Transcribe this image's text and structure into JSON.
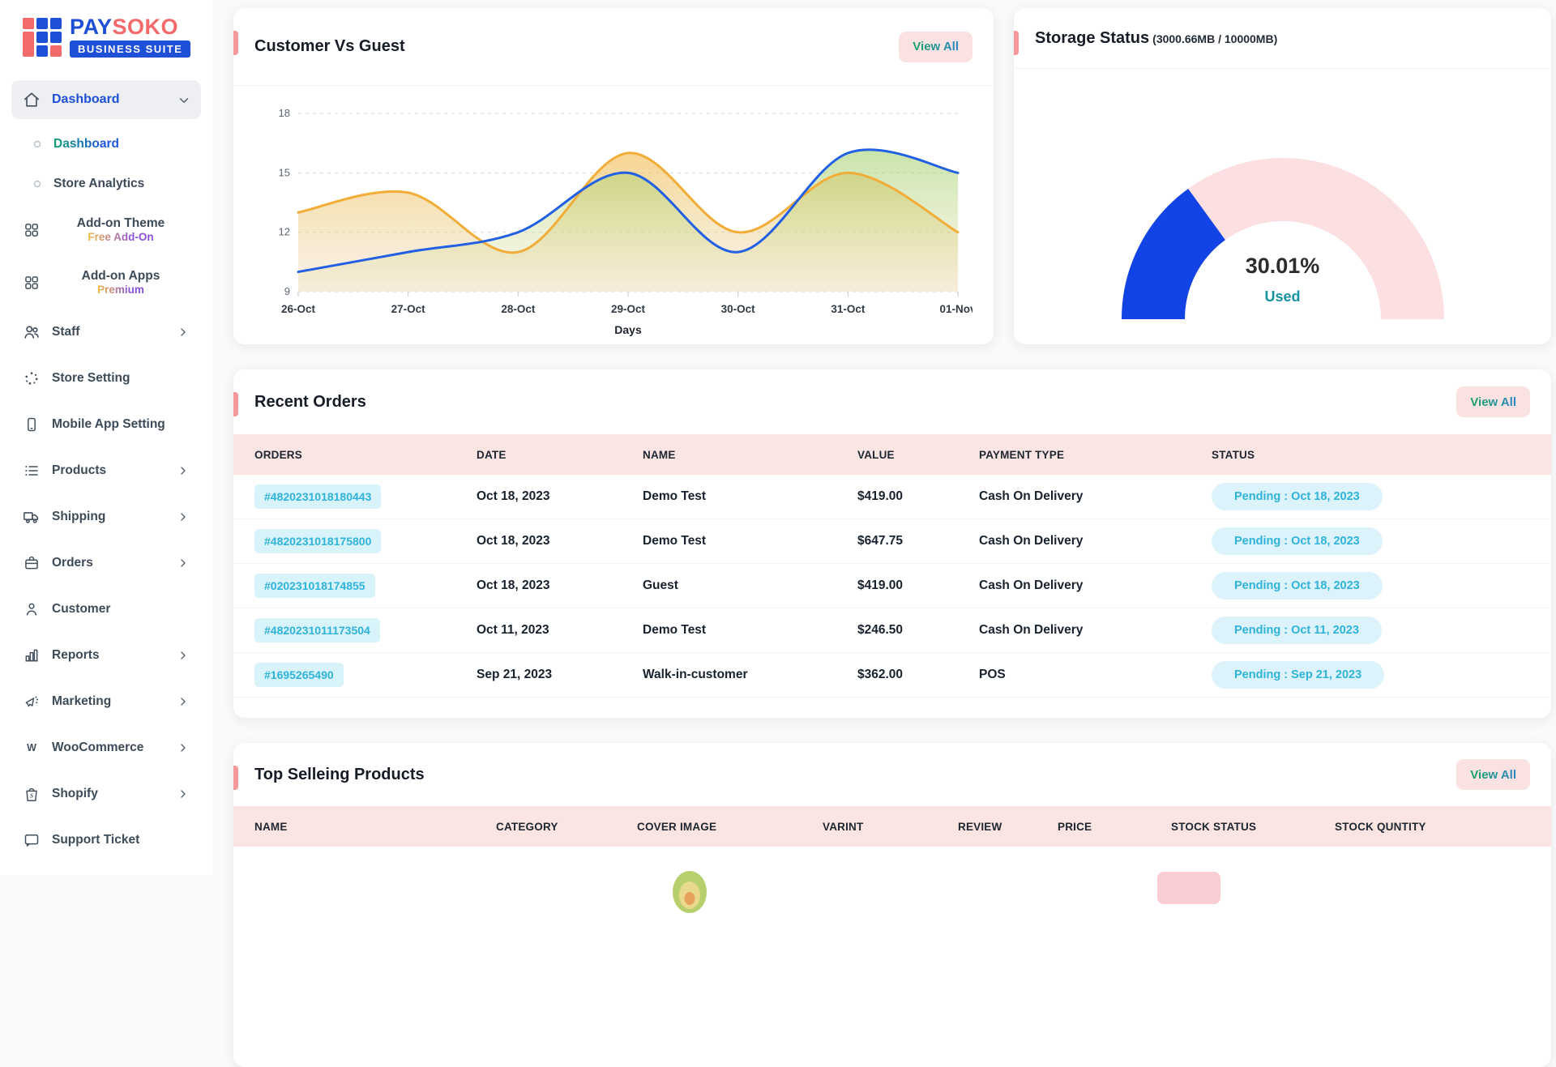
{
  "logo": {
    "brand_primary": "PAY",
    "brand_secondary": "SOKO",
    "tagline": "BUSINESS SUITE"
  },
  "sidebar": {
    "items": [
      {
        "label": "Dashboard",
        "icon": "home-icon",
        "chevron": "down",
        "style": "parent-active"
      },
      {
        "label": "Dashboard",
        "icon": "circle-icon",
        "style": "sub-active"
      },
      {
        "label": "Store Analytics",
        "icon": "circle-icon",
        "style": "sub"
      },
      {
        "label": "Add-on Theme",
        "sub_label": "Free Add-On",
        "icon": "grid-icon",
        "style": "twoline"
      },
      {
        "label": "Add-on Apps",
        "sub_label": "Premium",
        "icon": "grid-icon",
        "style": "twoline"
      },
      {
        "label": "Staff",
        "icon": "users-icon",
        "chevron": "right"
      },
      {
        "label": "Store Setting",
        "icon": "dots-circle-icon"
      },
      {
        "label": "Mobile App Setting",
        "icon": "smartphone-icon"
      },
      {
        "label": "Products",
        "icon": "list-icon",
        "chevron": "right"
      },
      {
        "label": "Shipping",
        "icon": "truck-icon",
        "chevron": "right"
      },
      {
        "label": "Orders",
        "icon": "briefcase-icon",
        "chevron": "right"
      },
      {
        "label": "Customer",
        "icon": "user-icon"
      },
      {
        "label": "Reports",
        "icon": "bar-chart-icon",
        "chevron": "right"
      },
      {
        "label": "Marketing",
        "icon": "megaphone-icon",
        "chevron": "right"
      },
      {
        "label": "WooCommerce",
        "icon": "letter-w-icon",
        "chevron": "right"
      },
      {
        "label": "Shopify",
        "icon": "shopping-bag-icon",
        "chevron": "right"
      },
      {
        "label": "Support Ticket",
        "icon": "chat-icon"
      }
    ]
  },
  "customer_vs_guest": {
    "title": "Customer Vs Guest",
    "view_all_label": "View All"
  },
  "storage": {
    "title": "Storage Status",
    "subtitle": "(3000.66MB / 10000MB)",
    "percent_text": "30.01%",
    "used_label": "Used"
  },
  "recent_orders": {
    "title": "Recent Orders",
    "view_all_label": "View All",
    "columns": [
      "ORDERS",
      "DATE",
      "NAME",
      "VALUE",
      "PAYMENT TYPE",
      "STATUS"
    ],
    "rows": [
      {
        "order_id": "#4820231018180443",
        "date": "Oct 18, 2023",
        "name": "Demo Test",
        "value": "$419.00",
        "payment": "Cash On Delivery",
        "status": "Pending : Oct 18, 2023"
      },
      {
        "order_id": "#4820231018175800",
        "date": "Oct 18, 2023",
        "name": "Demo Test",
        "value": "$647.75",
        "payment": "Cash On Delivery",
        "status": "Pending : Oct 18, 2023"
      },
      {
        "order_id": "#020231018174855",
        "date": "Oct 18, 2023",
        "name": "Guest",
        "value": "$419.00",
        "payment": "Cash On Delivery",
        "status": "Pending : Oct 18, 2023"
      },
      {
        "order_id": "#4820231011173504",
        "date": "Oct 11, 2023",
        "name": "Demo Test",
        "value": "$246.50",
        "payment": "Cash On Delivery",
        "status": "Pending : Oct 11, 2023"
      },
      {
        "order_id": "#1695265490",
        "date": "Sep 21, 2023",
        "name": "Walk-in-customer",
        "value": "$362.00",
        "payment": "POS",
        "status": "Pending : Sep 21, 2023"
      }
    ]
  },
  "top_products": {
    "title": "Top Selleing Products",
    "view_all_label": "View All",
    "columns": [
      "NAME",
      "CATEGORY",
      "COVER IMAGE",
      "VARINT",
      "REVIEW",
      "PRICE",
      "STOCK STATUS",
      "STOCK QUNTITY"
    ]
  },
  "chart_data": [
    {
      "id": "customer_vs_guest",
      "type": "line",
      "title": "Customer Vs Guest",
      "x": [
        "26-Oct",
        "27-Oct",
        "28-Oct",
        "29-Oct",
        "30-Oct",
        "31-Oct",
        "01-Nov"
      ],
      "xlabel": "Days",
      "ylim": [
        9,
        18
      ],
      "yticks": [
        9,
        12,
        15,
        18
      ],
      "grid": true,
      "legend": false,
      "series": [
        {
          "name": "orange",
          "color": "#F2AC38",
          "values": [
            13,
            14,
            11,
            16,
            12,
            15,
            12
          ]
        },
        {
          "name": "blue",
          "color": "#2160E4",
          "values": [
            10,
            11,
            12,
            15,
            11,
            16,
            15
          ]
        }
      ]
    },
    {
      "id": "storage_gauge",
      "type": "gauge",
      "percent": 30.01,
      "label": "Used",
      "used_mb": 3000.66,
      "total_mb": 10000,
      "colors": {
        "used": "#1243E4",
        "remaining": "#FCDFE1"
      }
    }
  ]
}
